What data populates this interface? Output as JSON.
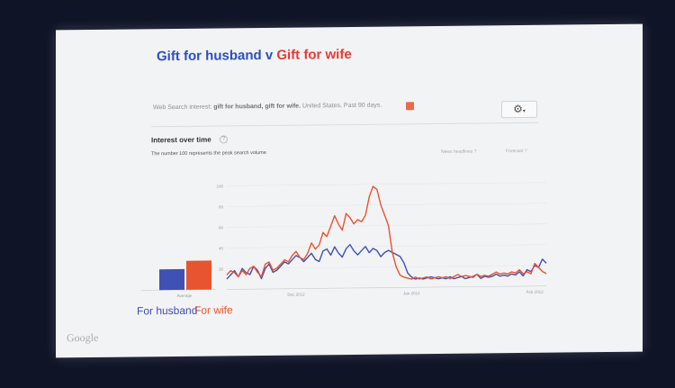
{
  "slide": {
    "title_part1": "Gift for husband v",
    "title_part2": "Gift for wife",
    "google_logo": "Google"
  },
  "trends": {
    "search_header_prefix": "Web Search interest:",
    "search_header_terms": "gift for husband, gift for wife.",
    "search_header_suffix": "United States, Past 90 days.",
    "section_title": "Interest over time",
    "help_glyph": "?",
    "note": "The number 100 represents the peak search volume",
    "news_headlines": "News headlines",
    "forecast": "Forecast",
    "settings_icon": "gear-icon",
    "rss_icon": "rss-icon"
  },
  "colors": {
    "husband": "#3f51b5",
    "wife": "#e8542f"
  },
  "chart_data": {
    "type": "line",
    "title": "Interest over time",
    "y_ticks": [
      100,
      80,
      60,
      40,
      20
    ],
    "ylim": [
      0,
      100
    ],
    "x_tick_labels": [
      "Dec 2012",
      "Jan 2013",
      "Feb 2013"
    ],
    "x_tick_index": [
      18,
      48,
      80
    ],
    "average_label": "Average",
    "averages": [
      {
        "name": "For husband",
        "value": 20
      },
      {
        "name": "For wife",
        "value": 28
      }
    ],
    "series": [
      {
        "name": "gift for husband",
        "values": [
          10,
          14,
          18,
          12,
          20,
          16,
          14,
          22,
          18,
          10,
          20,
          24,
          16,
          18,
          22,
          26,
          24,
          28,
          32,
          30,
          26,
          30,
          34,
          28,
          26,
          36,
          38,
          32,
          40,
          34,
          30,
          38,
          42,
          36,
          32,
          36,
          40,
          34,
          38,
          36,
          30,
          34,
          36,
          34,
          32,
          30,
          24,
          14,
          10,
          8,
          9,
          8,
          9,
          10,
          9,
          8,
          9,
          8,
          10,
          8,
          9,
          10,
          8,
          9,
          10,
          12,
          8,
          10,
          9,
          10,
          12,
          10,
          11,
          10,
          12,
          11,
          14,
          10,
          16,
          14,
          20,
          18,
          26,
          22
        ]
      },
      {
        "name": "gift for wife",
        "values": [
          14,
          18,
          16,
          12,
          18,
          14,
          20,
          22,
          16,
          12,
          24,
          26,
          18,
          20,
          24,
          28,
          26,
          32,
          36,
          30,
          28,
          34,
          44,
          38,
          42,
          54,
          50,
          60,
          70,
          62,
          56,
          72,
          68,
          62,
          66,
          64,
          70,
          88,
          98,
          95,
          80,
          70,
          60,
          34,
          20,
          12,
          10,
          9,
          8,
          10,
          8,
          9,
          10,
          8,
          9,
          10,
          9,
          10,
          8,
          10,
          12,
          10,
          11,
          10,
          9,
          12,
          10,
          11,
          10,
          12,
          14,
          12,
          13,
          12,
          14,
          13,
          16,
          12,
          14,
          12,
          22,
          18,
          14,
          12
        ]
      }
    ]
  }
}
